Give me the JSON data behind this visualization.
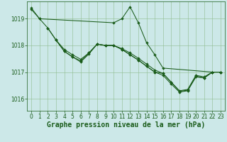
{
  "background_color": "#cce8e8",
  "plot_bg_color": "#cce8e8",
  "line_color": "#1a5c1a",
  "grid_color": "#8fbc8f",
  "text_color": "#1a5c1a",
  "xlabel": "Graphe pression niveau de la mer (hPa)",
  "ylim": [
    1015.55,
    1019.65
  ],
  "xlim": [
    -0.5,
    23.5
  ],
  "yticks": [
    1016,
    1017,
    1018,
    1019
  ],
  "xticks": [
    0,
    1,
    2,
    3,
    4,
    5,
    6,
    7,
    8,
    9,
    10,
    11,
    12,
    13,
    14,
    15,
    16,
    17,
    18,
    19,
    20,
    21,
    22,
    23
  ],
  "series": [
    {
      "x": [
        0,
        1,
        10,
        11,
        12,
        13,
        14,
        15,
        16,
        22,
        23
      ],
      "y": [
        1019.35,
        1019.0,
        1018.85,
        1019.0,
        1019.45,
        1018.85,
        1018.1,
        1017.65,
        1017.15,
        1017.0,
        1017.0
      ]
    },
    {
      "x": [
        2,
        3,
        4,
        5,
        6,
        7,
        8,
        9,
        10,
        11,
        12,
        13,
        14,
        15,
        16,
        17,
        18,
        19,
        20,
        21,
        22,
        23
      ],
      "y": [
        1018.65,
        1018.2,
        1017.78,
        1017.57,
        1017.42,
        1017.72,
        1018.05,
        1018.0,
        1018.0,
        1017.88,
        1017.72,
        1017.52,
        1017.3,
        1017.08,
        1016.95,
        1016.62,
        1016.3,
        1016.35,
        1016.88,
        1016.82,
        1017.0,
        1017.0
      ]
    },
    {
      "x": [
        3,
        4,
        5,
        6,
        7,
        8,
        9,
        10,
        11,
        12,
        13,
        14,
        15,
        16,
        17,
        18,
        19,
        20,
        21,
        22,
        23
      ],
      "y": [
        1018.2,
        1017.78,
        1017.57,
        1017.38,
        1017.68,
        1018.05,
        1018.0,
        1018.0,
        1017.85,
        1017.65,
        1017.45,
        1017.22,
        1017.0,
        1016.88,
        1016.55,
        1016.25,
        1016.3,
        1016.82,
        1016.78,
        1017.0,
        1017.0
      ]
    },
    {
      "x": [
        0,
        1,
        2,
        3,
        4,
        5,
        6,
        7,
        8,
        9,
        10,
        11,
        12,
        13,
        14,
        15,
        16,
        17,
        18,
        19,
        20,
        21,
        22,
        23
      ],
      "y": [
        1019.4,
        1019.0,
        1018.65,
        1018.2,
        1017.85,
        1017.65,
        1017.48,
        1017.72,
        1018.05,
        1018.0,
        1018.0,
        1017.85,
        1017.65,
        1017.45,
        1017.22,
        1017.0,
        1016.95,
        1016.62,
        1016.28,
        1016.32,
        1016.85,
        1016.78,
        1017.0,
        1017.0
      ]
    }
  ],
  "tick_fontsize": 5.5,
  "xlabel_fontsize": 7,
  "marker_size": 2.0,
  "line_width": 0.75
}
